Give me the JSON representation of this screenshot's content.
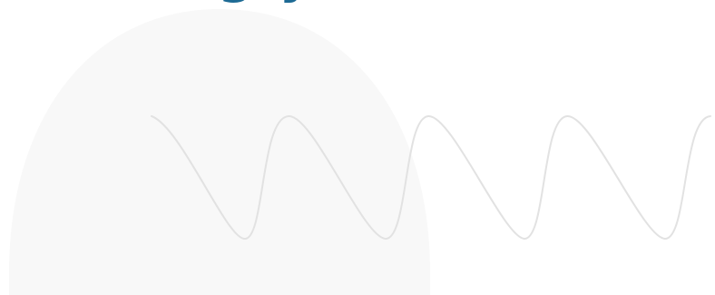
{
  "heading": {
    "text": "gry",
    "color": "#1d6a94"
  },
  "decor": {
    "arch_color": "#f8f8f8",
    "wave_color": "#e2e2e2"
  }
}
